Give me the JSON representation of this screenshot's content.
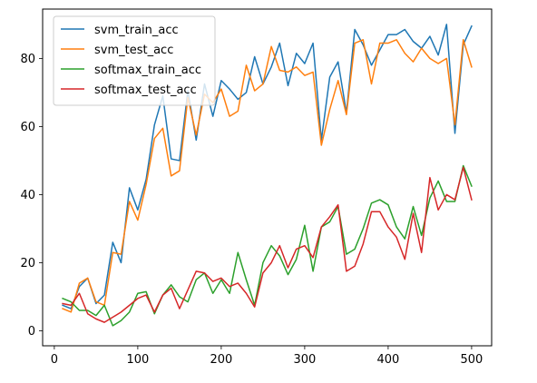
{
  "chart_data": {
    "type": "line",
    "title": "",
    "xlabel": "",
    "ylabel": "",
    "xlim": [
      -14,
      524
    ],
    "ylim": [
      -4.4,
      94.5
    ],
    "xticks": [
      0,
      100,
      200,
      300,
      400,
      500
    ],
    "yticks": [
      0,
      20,
      40,
      60,
      80
    ],
    "grid": false,
    "legend_position": "top-left",
    "x": [
      10,
      20,
      30,
      40,
      50,
      60,
      70,
      80,
      90,
      100,
      110,
      120,
      130,
      140,
      150,
      160,
      170,
      180,
      190,
      200,
      210,
      220,
      230,
      240,
      250,
      260,
      270,
      280,
      290,
      300,
      310,
      320,
      330,
      340,
      350,
      360,
      370,
      380,
      390,
      400,
      410,
      420,
      430,
      440,
      450,
      460,
      470,
      480,
      490,
      500
    ],
    "series": [
      {
        "name": "svm_train_acc",
        "color": "#1f77b4",
        "values": [
          7.5,
          6.5,
          13,
          15.5,
          8,
          10.5,
          26,
          20,
          42,
          35.5,
          44.5,
          60.5,
          69,
          50.5,
          50,
          70.5,
          56,
          72.5,
          63,
          73.5,
          71,
          68,
          70,
          80.5,
          72.5,
          77.5,
          84.5,
          72,
          81.5,
          78.5,
          84.5,
          56,
          74.5,
          79,
          64,
          88.5,
          84,
          78,
          82.5,
          87,
          87,
          88.5,
          85,
          83,
          86.5,
          81,
          90,
          58,
          84,
          89.5
        ]
      },
      {
        "name": "svm_test_acc",
        "color": "#ff7f0e",
        "values": [
          6.5,
          5.5,
          14,
          15.5,
          8.5,
          7.5,
          23,
          22.5,
          38,
          32.5,
          43,
          56.5,
          59.5,
          45.5,
          47,
          68.5,
          57.5,
          69.5,
          67,
          71,
          63,
          64.5,
          78,
          70.5,
          72.5,
          83.5,
          76.5,
          76,
          77.5,
          75,
          76,
          54.5,
          65,
          73.5,
          63.5,
          84.5,
          85.5,
          72.5,
          84.5,
          84.5,
          85.5,
          81.5,
          79,
          83,
          80,
          78.5,
          80,
          60.5,
          85.5,
          77.5
        ]
      },
      {
        "name": "softmax_train_acc",
        "color": "#2ca02c",
        "values": [
          9.5,
          8.5,
          6,
          6,
          4.5,
          7.5,
          1.5,
          3,
          5.5,
          11,
          11.5,
          5,
          10.5,
          13.5,
          10,
          8.5,
          15,
          17,
          11,
          15,
          11,
          23,
          15,
          7.5,
          20,
          25,
          22,
          16.5,
          21,
          31,
          17.5,
          30.5,
          32,
          36.5,
          22.5,
          24,
          30,
          37.5,
          38.5,
          37,
          30.5,
          27,
          36.5,
          28,
          39,
          44,
          38,
          38,
          48.5,
          42.5
        ]
      },
      {
        "name": "softmax_test_acc",
        "color": "#d62728",
        "values": [
          8,
          7.5,
          11,
          5,
          3.5,
          2.5,
          4,
          5.5,
          7.5,
          9.5,
          10.5,
          5.5,
          10.5,
          12.5,
          6.5,
          12,
          17.5,
          17,
          14.5,
          15.5,
          13,
          14,
          11,
          7,
          17,
          20,
          25,
          18.5,
          24,
          25,
          21.5,
          30.5,
          33.5,
          37,
          17.5,
          19,
          25.5,
          35,
          35,
          30.5,
          27.5,
          21,
          34.5,
          23,
          45,
          35.5,
          40,
          38.5,
          48,
          38.5
        ]
      }
    ]
  }
}
